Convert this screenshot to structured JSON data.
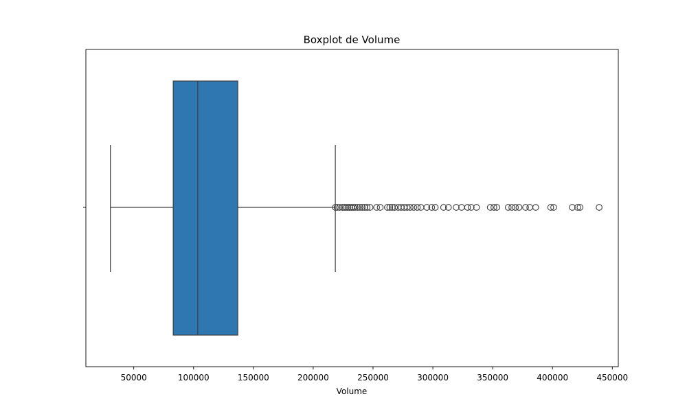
{
  "chart_data": {
    "type": "boxplot",
    "title": "Boxplot de Volume",
    "xlabel": "Volume",
    "ylabel": "",
    "xlim": [
      10000,
      455000
    ],
    "orientation": "horizontal",
    "grid": false,
    "ticks": [
      50000,
      100000,
      150000,
      200000,
      250000,
      300000,
      350000,
      400000,
      450000
    ],
    "tick_labels": [
      "50000",
      "100000",
      "150000",
      "200000",
      "250000",
      "300000",
      "350000",
      "400000",
      "450000"
    ],
    "colors": {
      "box_fill": "#2f77b1",
      "line": "#3d3d3d"
    },
    "box": {
      "whisker_low": 30500,
      "q1": 83000,
      "median": 103500,
      "q3": 137000,
      "whisker_high": 218500
    },
    "outliers": [
      218500,
      220000,
      222000,
      224500,
      226000,
      227500,
      229000,
      230500,
      232000,
      233500,
      235000,
      237000,
      239000,
      241000,
      243000,
      245000,
      247500,
      253000,
      256000,
      262000,
      264000,
      266000,
      268000,
      271000,
      273500,
      276000,
      278500,
      281000,
      284000,
      287000,
      290000,
      295000,
      299000,
      302000,
      309000,
      313000,
      319500,
      324000,
      329000,
      332000,
      336500,
      348000,
      351000,
      353500,
      363000,
      366000,
      369000,
      372000,
      377500,
      381000,
      386000,
      398500,
      401000,
      416500,
      421000,
      423000,
      439000
    ]
  }
}
